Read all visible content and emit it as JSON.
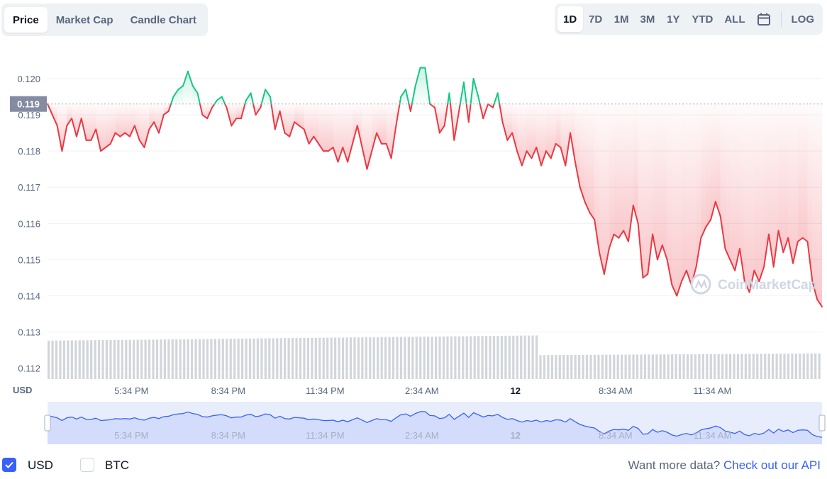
{
  "tabs": [
    "Price",
    "Market Cap",
    "Candle Chart"
  ],
  "active_tab": "Price",
  "ranges": [
    "1D",
    "7D",
    "1M",
    "3M",
    "1Y",
    "YTD",
    "ALL"
  ],
  "active_range": "1D",
  "calendar_icon": "calendar-icon",
  "log_label": "LOG",
  "colors": {
    "up": "#16c784",
    "down": "#ea3943",
    "volume": "#d2d5da",
    "nav": "#3861fb",
    "accent": "#3861fb"
  },
  "currency_label": "USD",
  "current_price_label": "0.119",
  "watermark": "CoinMarketCap",
  "footer": {
    "usd": "USD",
    "btc": "BTC",
    "more_text": "Want more data?",
    "more_link": "Check out our API"
  },
  "chart_data": {
    "type": "line",
    "reference_price": 0.1193,
    "y_ticks": [
      "0.120",
      "0.119",
      "0.118",
      "0.117",
      "0.116",
      "0.115",
      "0.114",
      "0.113",
      "0.112"
    ],
    "ylim": [
      0.1117,
      0.1209
    ],
    "x_ticks": [
      "5:34 PM",
      "8:34 PM",
      "11:34 PM",
      "2:34 AM",
      "12",
      "8:34 AM",
      "11:34 AM"
    ],
    "x_tick_hours": [
      2.6,
      5.6,
      8.6,
      11.6,
      14.5,
      17.6,
      20.6
    ],
    "xlim_hours": [
      0,
      24
    ],
    "price": [
      [
        0.0,
        0.1193
      ],
      [
        0.15,
        0.119
      ],
      [
        0.3,
        0.1187
      ],
      [
        0.45,
        0.118
      ],
      [
        0.6,
        0.1187
      ],
      [
        0.75,
        0.1189
      ],
      [
        0.9,
        0.1184
      ],
      [
        1.05,
        0.1189
      ],
      [
        1.2,
        0.1183
      ],
      [
        1.35,
        0.1183
      ],
      [
        1.5,
        0.1186
      ],
      [
        1.65,
        0.118
      ],
      [
        1.8,
        0.1181
      ],
      [
        1.95,
        0.1182
      ],
      [
        2.1,
        0.1185
      ],
      [
        2.25,
        0.1184
      ],
      [
        2.4,
        0.1185
      ],
      [
        2.55,
        0.1184
      ],
      [
        2.7,
        0.1187
      ],
      [
        2.85,
        0.1183
      ],
      [
        3.0,
        0.1181
      ],
      [
        3.15,
        0.1186
      ],
      [
        3.3,
        0.1188
      ],
      [
        3.45,
        0.1185
      ],
      [
        3.6,
        0.119
      ],
      [
        3.75,
        0.1191
      ],
      [
        3.9,
        0.1195
      ],
      [
        4.05,
        0.1197
      ],
      [
        4.2,
        0.1198
      ],
      [
        4.35,
        0.1202
      ],
      [
        4.5,
        0.1198
      ],
      [
        4.65,
        0.1196
      ],
      [
        4.8,
        0.119
      ],
      [
        4.95,
        0.1189
      ],
      [
        5.1,
        0.1192
      ],
      [
        5.25,
        0.1194
      ],
      [
        5.4,
        0.1195
      ],
      [
        5.55,
        0.1192
      ],
      [
        5.7,
        0.1187
      ],
      [
        5.85,
        0.1189
      ],
      [
        6.0,
        0.1189
      ],
      [
        6.15,
        0.1194
      ],
      [
        6.3,
        0.1196
      ],
      [
        6.45,
        0.119
      ],
      [
        6.6,
        0.1192
      ],
      [
        6.75,
        0.1197
      ],
      [
        6.9,
        0.1195
      ],
      [
        7.05,
        0.1186
      ],
      [
        7.2,
        0.1191
      ],
      [
        7.35,
        0.1185
      ],
      [
        7.5,
        0.1184
      ],
      [
        7.65,
        0.1188
      ],
      [
        7.8,
        0.1187
      ],
      [
        7.95,
        0.1186
      ],
      [
        8.1,
        0.1182
      ],
      [
        8.25,
        0.1184
      ],
      [
        8.4,
        0.1182
      ],
      [
        8.55,
        0.118
      ],
      [
        8.7,
        0.118
      ],
      [
        8.85,
        0.1181
      ],
      [
        9.0,
        0.1177
      ],
      [
        9.15,
        0.1181
      ],
      [
        9.3,
        0.1177
      ],
      [
        9.45,
        0.1182
      ],
      [
        9.6,
        0.1187
      ],
      [
        9.75,
        0.1181
      ],
      [
        9.9,
        0.1175
      ],
      [
        10.05,
        0.118
      ],
      [
        10.2,
        0.1185
      ],
      [
        10.35,
        0.1182
      ],
      [
        10.5,
        0.1182
      ],
      [
        10.65,
        0.1178
      ],
      [
        10.8,
        0.1187
      ],
      [
        10.95,
        0.1195
      ],
      [
        11.1,
        0.1197
      ],
      [
        11.25,
        0.1191
      ],
      [
        11.4,
        0.1198
      ],
      [
        11.55,
        0.1203
      ],
      [
        11.7,
        0.1203
      ],
      [
        11.85,
        0.1193
      ],
      [
        12.0,
        0.1192
      ],
      [
        12.15,
        0.1185
      ],
      [
        12.3,
        0.1187
      ],
      [
        12.45,
        0.1196
      ],
      [
        12.6,
        0.1183
      ],
      [
        12.75,
        0.1191
      ],
      [
        12.9,
        0.1199
      ],
      [
        13.05,
        0.1188
      ],
      [
        13.2,
        0.12
      ],
      [
        13.35,
        0.1195
      ],
      [
        13.5,
        0.1189
      ],
      [
        13.65,
        0.1193
      ],
      [
        13.8,
        0.1192
      ],
      [
        13.95,
        0.1196
      ],
      [
        14.1,
        0.1188
      ],
      [
        14.25,
        0.1183
      ],
      [
        14.4,
        0.1185
      ],
      [
        14.55,
        0.118
      ],
      [
        14.7,
        0.1176
      ],
      [
        14.85,
        0.118
      ],
      [
        15.0,
        0.1178
      ],
      [
        15.15,
        0.1181
      ],
      [
        15.3,
        0.1176
      ],
      [
        15.45,
        0.118
      ],
      [
        15.6,
        0.1178
      ],
      [
        15.75,
        0.1182
      ],
      [
        15.9,
        0.1181
      ],
      [
        16.05,
        0.1176
      ],
      [
        16.2,
        0.1185
      ],
      [
        16.35,
        0.1177
      ],
      [
        16.5,
        0.117
      ],
      [
        16.65,
        0.1166
      ],
      [
        16.8,
        0.1163
      ],
      [
        16.95,
        0.1161
      ],
      [
        17.1,
        0.1152
      ],
      [
        17.25,
        0.1146
      ],
      [
        17.4,
        0.1153
      ],
      [
        17.55,
        0.1157
      ],
      [
        17.7,
        0.1156
      ],
      [
        17.85,
        0.1158
      ],
      [
        18.0,
        0.1155
      ],
      [
        18.15,
        0.1165
      ],
      [
        18.3,
        0.116
      ],
      [
        18.45,
        0.1145
      ],
      [
        18.6,
        0.1146
      ],
      [
        18.75,
        0.1157
      ],
      [
        18.9,
        0.115
      ],
      [
        19.05,
        0.1154
      ],
      [
        19.2,
        0.115
      ],
      [
        19.35,
        0.1143
      ],
      [
        19.5,
        0.114
      ],
      [
        19.65,
        0.1144
      ],
      [
        19.8,
        0.1147
      ],
      [
        19.95,
        0.1143
      ],
      [
        20.1,
        0.1148
      ],
      [
        20.25,
        0.1156
      ],
      [
        20.4,
        0.1159
      ],
      [
        20.55,
        0.1161
      ],
      [
        20.7,
        0.1166
      ],
      [
        20.85,
        0.1162
      ],
      [
        21.0,
        0.1153
      ],
      [
        21.15,
        0.115
      ],
      [
        21.3,
        0.1147
      ],
      [
        21.45,
        0.1153
      ],
      [
        21.6,
        0.1144
      ],
      [
        21.75,
        0.1141
      ],
      [
        21.9,
        0.1147
      ],
      [
        22.05,
        0.1144
      ],
      [
        22.2,
        0.1148
      ],
      [
        22.35,
        0.1157
      ],
      [
        22.5,
        0.1148
      ],
      [
        22.65,
        0.1158
      ],
      [
        22.8,
        0.1152
      ],
      [
        22.95,
        0.1156
      ],
      [
        23.1,
        0.1149
      ],
      [
        23.25,
        0.1155
      ],
      [
        23.4,
        0.1156
      ],
      [
        23.55,
        0.1155
      ],
      [
        23.7,
        0.1144
      ],
      [
        23.85,
        0.1139
      ],
      [
        24.0,
        0.1137
      ]
    ],
    "volume_levels": [
      0.33,
      0.56
    ],
    "volume_split_hour": 15.2,
    "grid": true,
    "legend": "none"
  }
}
